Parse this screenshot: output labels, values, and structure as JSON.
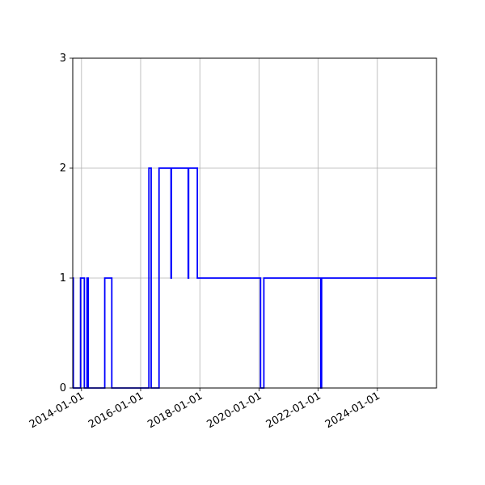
{
  "chart_data": {
    "type": "line",
    "step": "post",
    "title": "",
    "xlabel": "",
    "ylabel": "",
    "x_scale": "time",
    "xlim": [
      "2013-09-15",
      "2025-12-31"
    ],
    "ylim": [
      0,
      3
    ],
    "grid": true,
    "legend": "none",
    "x_ticks": [
      "2014-01-01",
      "2016-01-01",
      "2018-01-01",
      "2020-01-01",
      "2022-01-01",
      "2024-01-01"
    ],
    "y_ticks": [
      0,
      1,
      2,
      3
    ],
    "series": [
      {
        "color": "#0000ff",
        "points": [
          [
            "2013-09-15",
            1
          ],
          [
            "2013-09-22",
            0
          ],
          [
            "2013-12-20",
            1
          ],
          [
            "2014-02-05",
            0
          ],
          [
            "2014-03-10",
            1
          ],
          [
            "2014-03-25",
            0
          ],
          [
            "2014-10-15",
            1
          ],
          [
            "2015-01-10",
            0
          ],
          [
            "2016-04-12",
            2
          ],
          [
            "2016-05-10",
            0
          ],
          [
            "2016-08-15",
            2
          ],
          [
            "2017-01-10",
            1
          ],
          [
            "2017-01-15",
            2
          ],
          [
            "2017-08-10",
            1
          ],
          [
            "2017-08-15",
            2
          ],
          [
            "2017-12-01",
            1
          ],
          [
            "2018-01-01",
            1
          ],
          [
            "2020-01-20",
            0
          ],
          [
            "2020-03-01",
            1
          ],
          [
            "2022-02-01",
            0
          ],
          [
            "2022-02-12",
            1
          ],
          [
            "2025-12-31",
            1
          ]
        ]
      }
    ]
  }
}
